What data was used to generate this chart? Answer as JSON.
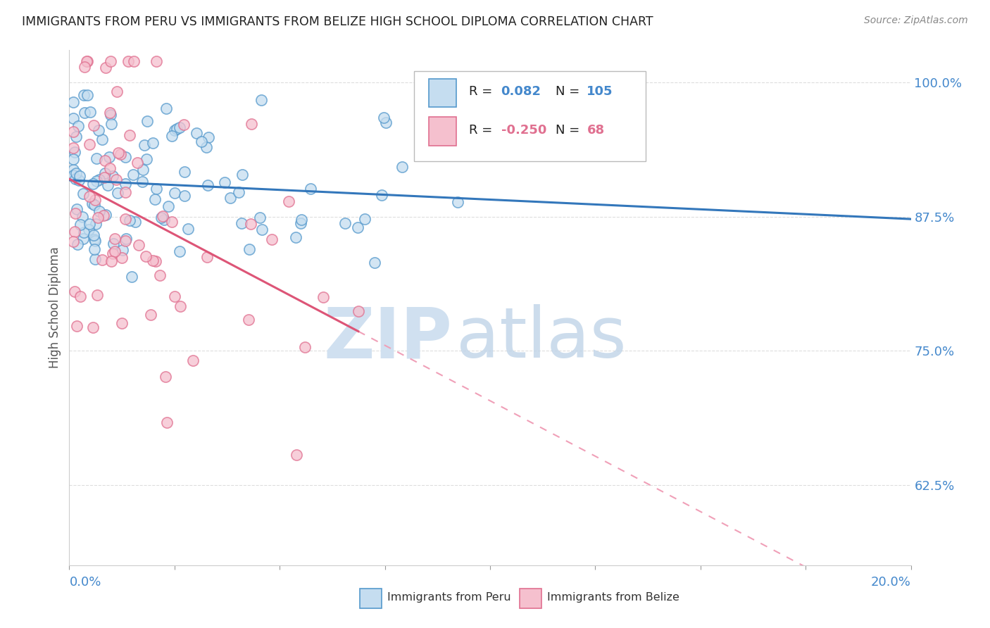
{
  "title": "IMMIGRANTS FROM PERU VS IMMIGRANTS FROM BELIZE HIGH SCHOOL DIPLOMA CORRELATION CHART",
  "source": "Source: ZipAtlas.com",
  "ylabel": "High School Diploma",
  "peru_label": "Immigrants from Peru",
  "belize_label": "Immigrants from Belize",
  "peru_R": 0.082,
  "peru_N": 105,
  "belize_R": -0.25,
  "belize_N": 68,
  "peru_fill_color": "#c5ddf0",
  "belize_fill_color": "#f5c0ce",
  "peru_edge_color": "#5599cc",
  "belize_edge_color": "#e07090",
  "peru_line_color": "#3377bb",
  "belize_line_solid_color": "#dd5577",
  "belize_line_dash_color": "#f0a0b8",
  "watermark_zip_color": "#d0e0f0",
  "watermark_atlas_color": "#c0d4e8",
  "background_color": "#ffffff",
  "ytick_color": "#4488cc",
  "title_color": "#222222",
  "source_color": "#888888",
  "grid_color": "#dddddd",
  "xmin": 0.0,
  "xmax": 0.2,
  "ymin": 0.55,
  "ymax": 1.03
}
